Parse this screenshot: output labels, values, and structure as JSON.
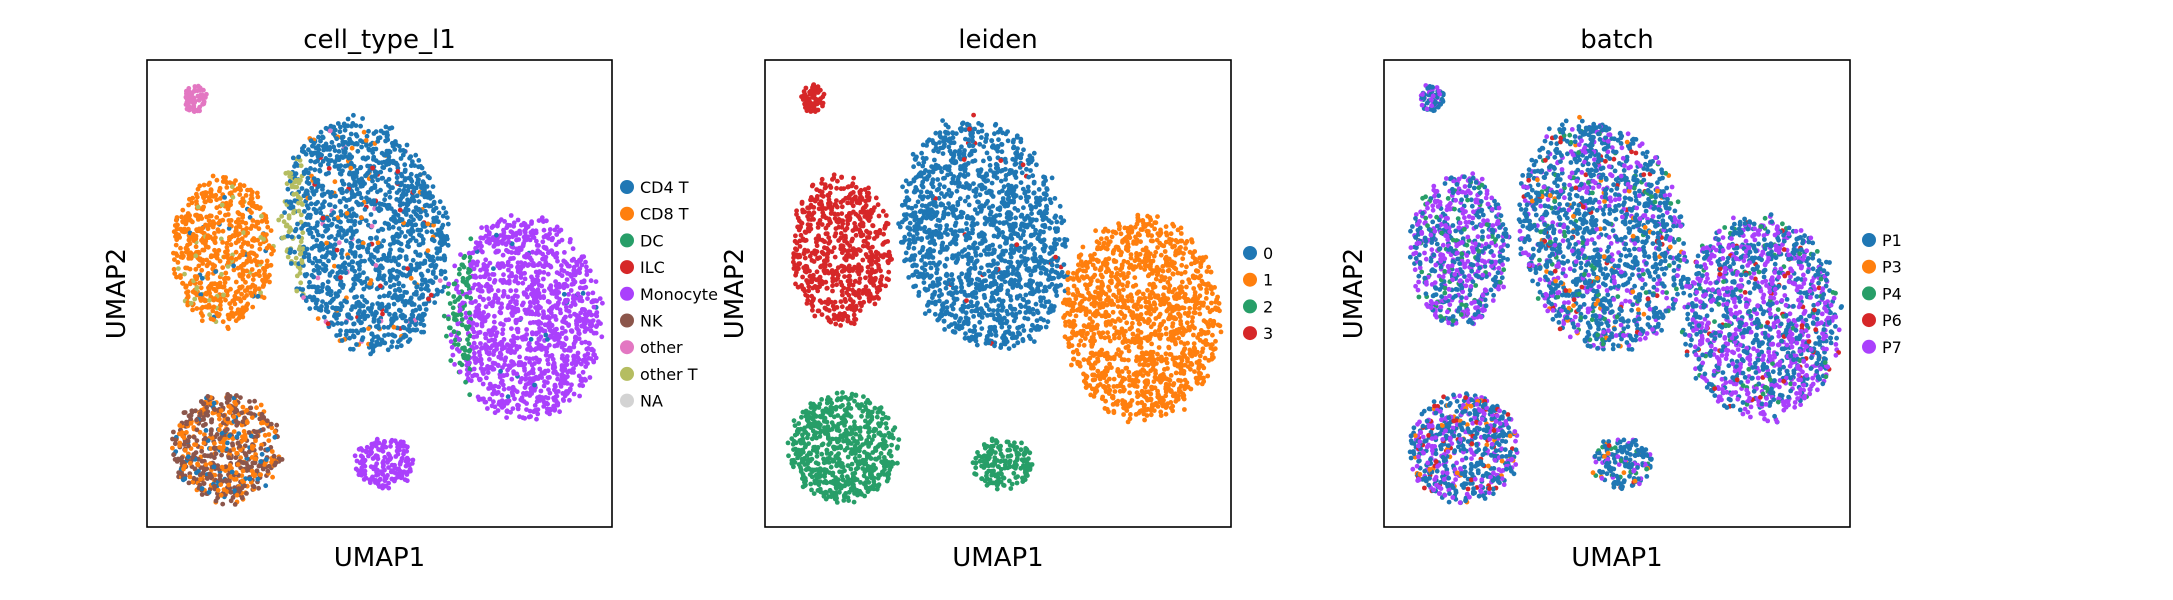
{
  "chart_data": [
    {
      "type": "scatter",
      "title": "cell_type_l1",
      "xlabel": "UMAP1",
      "ylabel": "UMAP2",
      "xticks": [],
      "yticks": [],
      "legend_position": "right",
      "legend": [
        {
          "name": "CD4 T",
          "color": "#1f77b4"
        },
        {
          "name": "CD8 T",
          "color": "#ff7f0e"
        },
        {
          "name": "DC",
          "color": "#279e68"
        },
        {
          "name": "ILC",
          "color": "#d62728"
        },
        {
          "name": "Monocyte",
          "color": "#aa40fc"
        },
        {
          "name": "NK",
          "color": "#8c564b"
        },
        {
          "name": "other",
          "color": "#e377c2"
        },
        {
          "name": "other T",
          "color": "#b5bd61"
        },
        {
          "name": "NA",
          "color": "#d3d3d3"
        }
      ]
    },
    {
      "type": "scatter",
      "title": "leiden",
      "xlabel": "UMAP1",
      "ylabel": "UMAP2",
      "xticks": [],
      "yticks": [],
      "legend_position": "right",
      "legend": [
        {
          "name": "0",
          "color": "#1f77b4"
        },
        {
          "name": "1",
          "color": "#ff7f0e"
        },
        {
          "name": "2",
          "color": "#279e68"
        },
        {
          "name": "3",
          "color": "#d62728"
        }
      ]
    },
    {
      "type": "scatter",
      "title": "batch",
      "xlabel": "UMAP1",
      "ylabel": "UMAP2",
      "xticks": [],
      "yticks": [],
      "legend_position": "right",
      "legend": [
        {
          "name": "P1",
          "color": "#1f77b4"
        },
        {
          "name": "P3",
          "color": "#ff7f0e"
        },
        {
          "name": "P4",
          "color": "#279e68"
        },
        {
          "name": "P6",
          "color": "#d62728"
        },
        {
          "name": "P7",
          "color": "#aa40fc"
        }
      ]
    }
  ]
}
